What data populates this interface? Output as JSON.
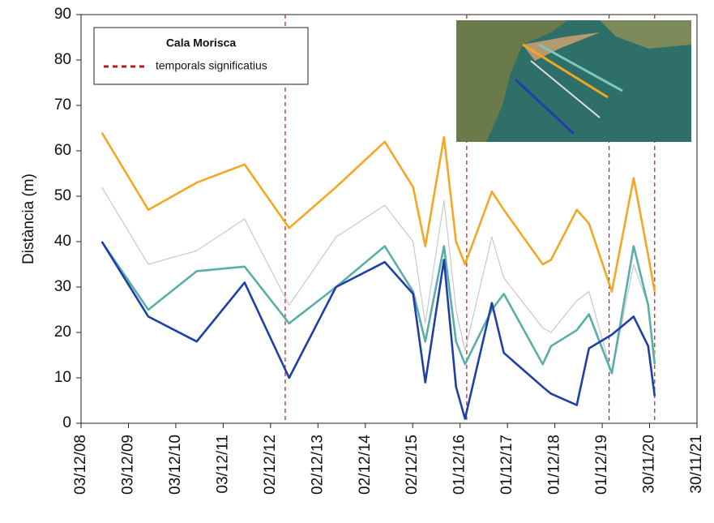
{
  "chart_data": {
    "type": "line",
    "y_label": "Distància (m)",
    "legend_title": "Cala Morisca",
    "storms": {
      "name": "temporals significatius",
      "color": "#b01c1c",
      "x": [
        "2013-03-25",
        "2017-01-21",
        "2020-01-23",
        "2021-01-08"
      ]
    },
    "x": [
      "2009-05-12",
      "2010-05-05",
      "2011-05-13",
      "2012-05-16",
      "2013-04-24",
      "2014-04-20",
      "2015-05-01",
      "2015-12-05",
      "2016-03-08",
      "2016-07-30",
      "2016-10-31",
      "2017-01-08",
      "2017-08-03",
      "2017-11-03",
      "2018-08-30",
      "2018-11-02",
      "2019-05-19",
      "2019-08-21",
      "2020-02-13",
      "2020-07-30",
      "2020-11-19",
      "2021-01-08"
    ],
    "series": [
      {
        "color": "#f5a623",
        "values": [
          64,
          47,
          53,
          57,
          43,
          52,
          62,
          52,
          39,
          63,
          40,
          35,
          51,
          47,
          35,
          36,
          47,
          44,
          29,
          54,
          37,
          29
        ]
      },
      {
        "color": "#c8c8c8",
        "values": [
          52,
          35,
          38,
          45,
          26,
          41,
          48,
          40,
          22,
          49,
          25,
          16,
          41,
          32,
          21,
          20,
          27,
          29,
          11,
          35,
          26,
          15
        ]
      },
      {
        "color": "#5aaea8",
        "values": [
          40,
          25,
          33.5,
          34.5,
          22,
          30,
          39,
          29,
          18,
          39,
          18,
          13,
          25,
          28.5,
          13,
          17,
          20.5,
          24,
          11,
          39,
          26,
          13
        ]
      },
      {
        "color": "#1f3fa8",
        "values": [
          40,
          23.5,
          18,
          31,
          10,
          30,
          35.5,
          28.5,
          9,
          36,
          8,
          1,
          26.5,
          15.5,
          8,
          6.5,
          4,
          16.5,
          19.5,
          23.5,
          17,
          6
        ]
      }
    ],
    "xlim": [
      "2008-12-03",
      "2021-11-30"
    ],
    "xticks": [
      {
        "value": "2008-12-03",
        "label": "03/12/08"
      },
      {
        "value": "2009-12-03",
        "label": "03/12/09"
      },
      {
        "value": "2010-12-03",
        "label": "03/12/10"
      },
      {
        "value": "2011-12-03",
        "label": "03/12/11"
      },
      {
        "value": "2012-12-02",
        "label": "02/12/12"
      },
      {
        "value": "2013-12-02",
        "label": "02/12/13"
      },
      {
        "value": "2014-12-02",
        "label": "02/12/14"
      },
      {
        "value": "2015-12-02",
        "label": "02/12/15"
      },
      {
        "value": "2016-12-01",
        "label": "01/12/16"
      },
      {
        "value": "2017-12-01",
        "label": "01/12/17"
      },
      {
        "value": "2018-12-01",
        "label": "01/12/18"
      },
      {
        "value": "2019-12-01",
        "label": "01/12/19"
      },
      {
        "value": "2020-11-30",
        "label": "30/11/20"
      },
      {
        "value": "2021-11-30",
        "label": "30/11/21"
      }
    ],
    "ylim": [
      0,
      90
    ],
    "yticks": [
      0,
      10,
      20,
      30,
      40,
      50,
      60,
      70,
      80,
      90
    ]
  }
}
